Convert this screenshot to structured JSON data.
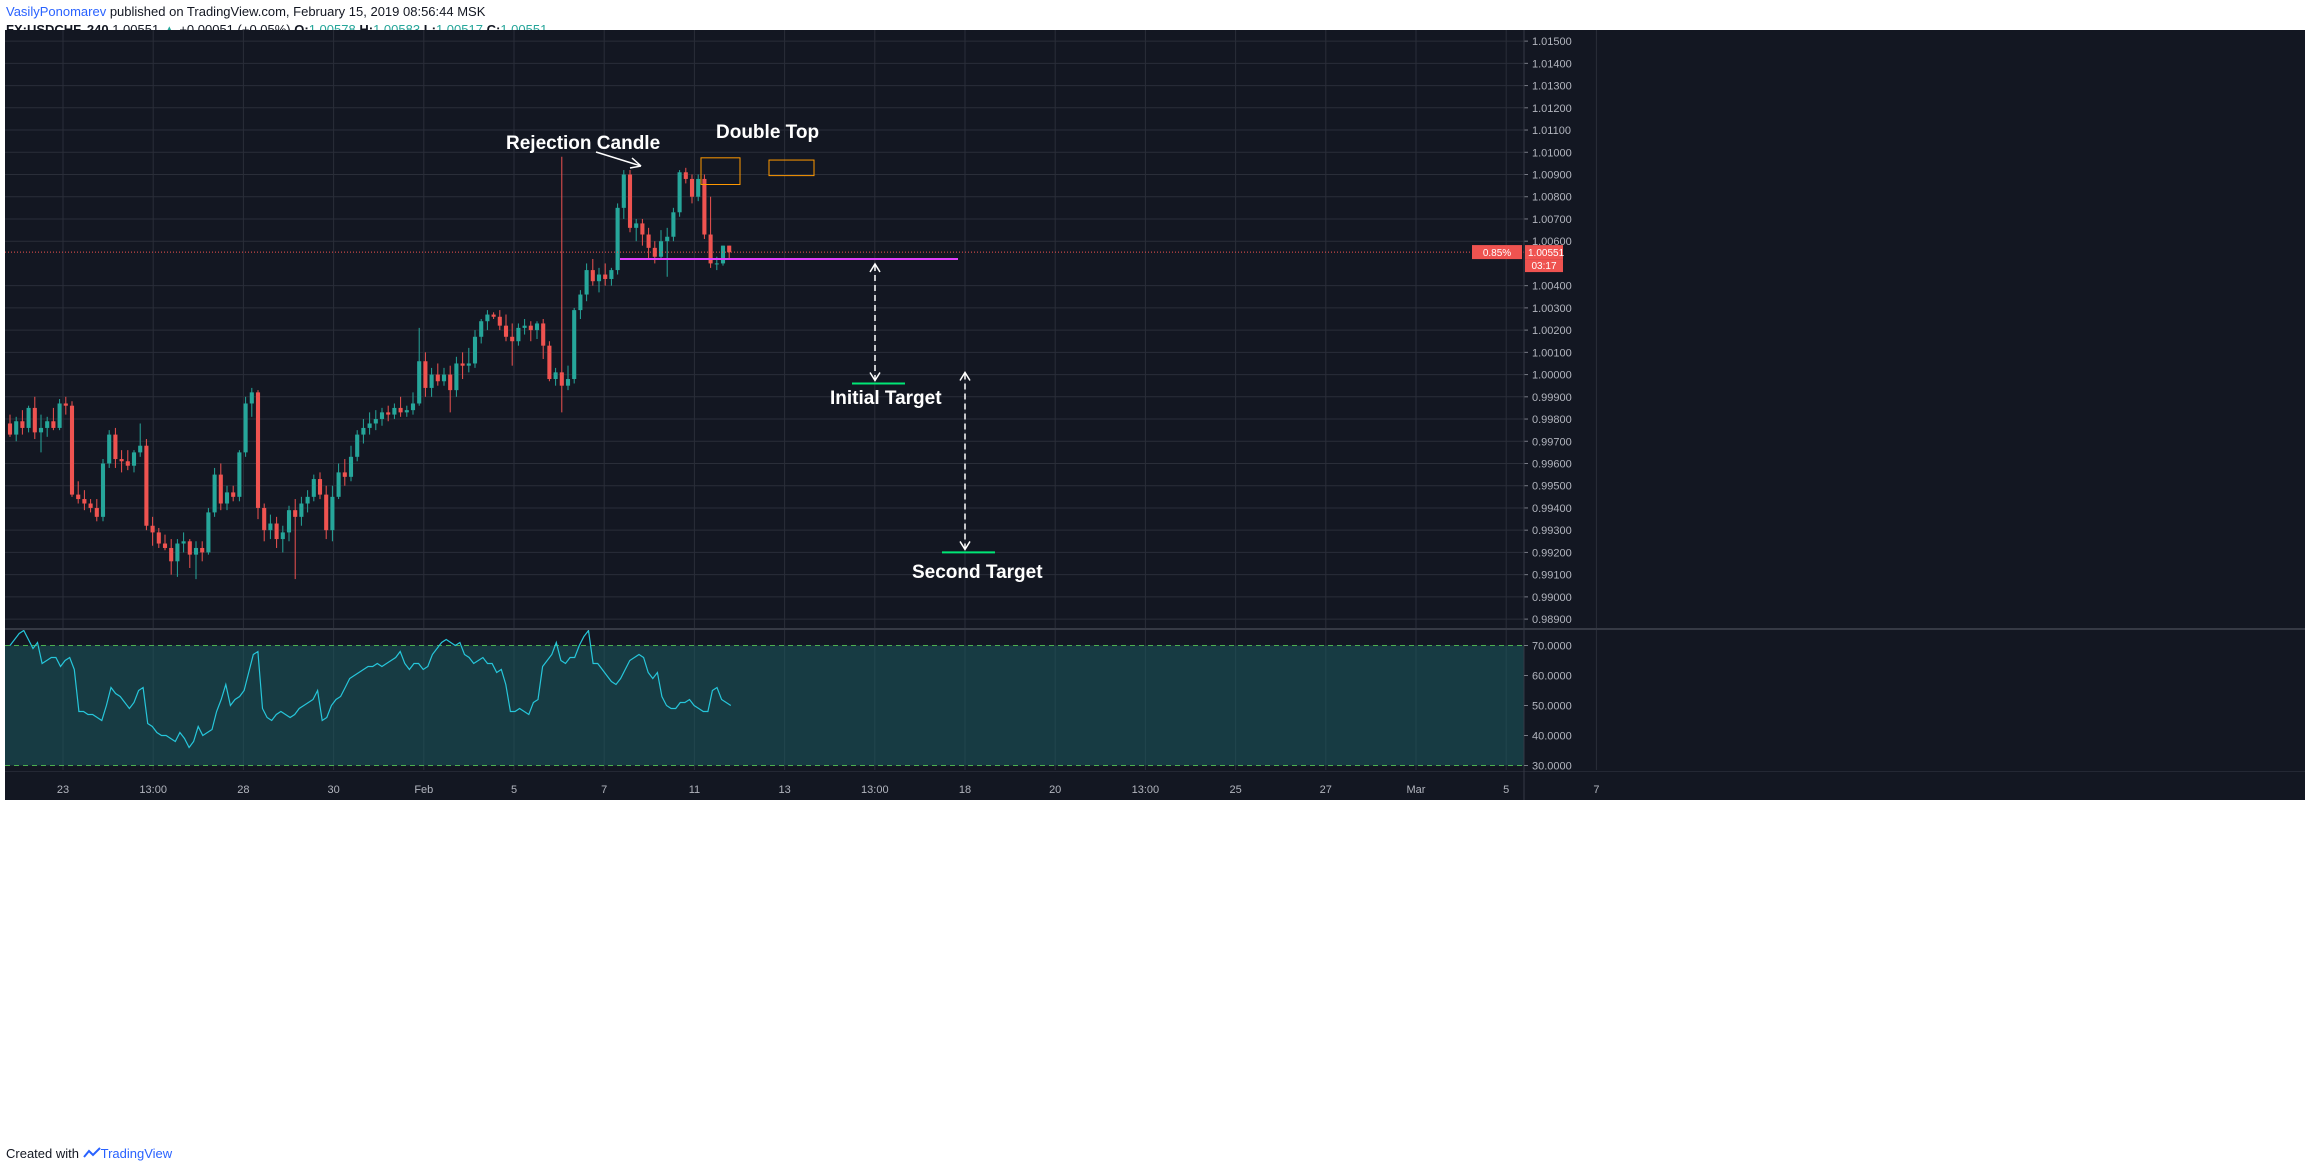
{
  "header": {
    "author": "VasilyPonomarev",
    "published_text": "published on TradingView.com, February 15, 2019 08:56:44 MSK",
    "symbol": "FX:USDCHF, 240",
    "last": "1.00551",
    "change": "+0.00051 (+0.05%)",
    "o_label": "O:",
    "o_value": "1.00578",
    "h_label": "H:",
    "h_value": "1.00583",
    "l_label": "L:",
    "l_value": "1.00517",
    "c_label": "C:",
    "c_value": "1.00551"
  },
  "footer": {
    "created_with": "Created with",
    "brand": "TradingView"
  },
  "colors": {
    "background": "#131722",
    "grid": "#2a2e39",
    "text": "#b2b5be",
    "up": "#26a69a",
    "down": "#ef5350",
    "support_line": "#e040fb",
    "double_top_box": "#ff9800",
    "target_line": "#00e676",
    "rsi_line": "#26c6da",
    "rsi_band": "#1b5a5e",
    "price_line": "#ef5350"
  },
  "chart_data": [
    {
      "type": "candlestick",
      "symbol": "FX:USDCHF",
      "timeframe": "240",
      "x_ticks": [
        "23",
        "13:00",
        "28",
        "30",
        "Feb",
        "5",
        "7",
        "11",
        "13",
        "13:00",
        "18",
        "20",
        "13:00",
        "25",
        "27",
        "Mar",
        "5",
        "7"
      ],
      "y_ticks": [
        "1.01500",
        "1.01400",
        "1.01300",
        "1.01200",
        "1.01100",
        "1.01000",
        "1.00900",
        "1.00800",
        "1.00700",
        "1.00600",
        "1.00400",
        "1.00300",
        "1.00200",
        "1.00100",
        "1.00000",
        "0.99900",
        "0.99800",
        "0.99700",
        "0.99600",
        "0.99500",
        "0.99400",
        "0.99300",
        "0.99200",
        "0.99100",
        "0.99000",
        "0.98900"
      ],
      "ylim": [
        0.9886,
        1.0155
      ],
      "grid": true,
      "ohlc": [
        [
          0.9978,
          0.9982,
          0.9972,
          0.9973
        ],
        [
          0.9973,
          0.9981,
          0.997,
          0.9979
        ],
        [
          0.9979,
          0.9984,
          0.9973,
          0.9976
        ],
        [
          0.9976,
          0.9986,
          0.9974,
          0.9985
        ],
        [
          0.9985,
          0.999,
          0.9971,
          0.9974
        ],
        [
          0.9974,
          0.9982,
          0.9965,
          0.9976
        ],
        [
          0.9976,
          0.9981,
          0.9972,
          0.9979
        ],
        [
          0.9979,
          0.9985,
          0.9975,
          0.9976
        ],
        [
          0.9976,
          0.9989,
          0.9975,
          0.9987
        ],
        [
          0.9987,
          0.999,
          0.9982,
          0.9986
        ],
        [
          0.9986,
          0.9988,
          0.9945,
          0.9946
        ],
        [
          0.9946,
          0.9952,
          0.9942,
          0.9944
        ],
        [
          0.9944,
          0.9948,
          0.9939,
          0.9942
        ],
        [
          0.9942,
          0.9944,
          0.9938,
          0.994
        ],
        [
          0.994,
          0.9944,
          0.9934,
          0.9936
        ],
        [
          0.9936,
          0.9962,
          0.9934,
          0.996
        ],
        [
          0.996,
          0.9975,
          0.9958,
          0.9973
        ],
        [
          0.9973,
          0.9976,
          0.9958,
          0.9962
        ],
        [
          0.9962,
          0.9966,
          0.9956,
          0.9961
        ],
        [
          0.9961,
          0.9966,
          0.9957,
          0.9959
        ],
        [
          0.9959,
          0.9966,
          0.9956,
          0.9965
        ],
        [
          0.9965,
          0.9978,
          0.9963,
          0.9968
        ],
        [
          0.9968,
          0.9971,
          0.993,
          0.9932
        ],
        [
          0.9932,
          0.9936,
          0.9923,
          0.9929
        ],
        [
          0.9929,
          0.9931,
          0.9922,
          0.9924
        ],
        [
          0.9924,
          0.9928,
          0.9921,
          0.9922
        ],
        [
          0.9922,
          0.9926,
          0.991,
          0.9916
        ],
        [
          0.9916,
          0.9926,
          0.9909,
          0.9924
        ],
        [
          0.9924,
          0.9929,
          0.992,
          0.9925
        ],
        [
          0.9925,
          0.9926,
          0.9913,
          0.9919
        ],
        [
          0.9919,
          0.9925,
          0.9908,
          0.9922
        ],
        [
          0.9922,
          0.9925,
          0.9916,
          0.992
        ],
        [
          0.992,
          0.994,
          0.9919,
          0.9938
        ],
        [
          0.9938,
          0.9958,
          0.9936,
          0.9955
        ],
        [
          0.9955,
          0.996,
          0.9939,
          0.9942
        ],
        [
          0.9942,
          0.995,
          0.9939,
          0.9947
        ],
        [
          0.9947,
          0.995,
          0.9943,
          0.9945
        ],
        [
          0.9945,
          0.9966,
          0.9943,
          0.9965
        ],
        [
          0.9965,
          0.999,
          0.9963,
          0.9987
        ],
        [
          0.9987,
          0.9994,
          0.9981,
          0.9992
        ],
        [
          0.9992,
          0.9993,
          0.9935,
          0.994
        ],
        [
          0.994,
          0.9942,
          0.9925,
          0.993
        ],
        [
          0.993,
          0.9937,
          0.9926,
          0.9933
        ],
        [
          0.9933,
          0.9936,
          0.9922,
          0.9926
        ],
        [
          0.9926,
          0.9932,
          0.992,
          0.9929
        ],
        [
          0.9929,
          0.9941,
          0.9925,
          0.9939
        ],
        [
          0.9939,
          0.9944,
          0.9908,
          0.9936
        ],
        [
          0.9936,
          0.9945,
          0.9932,
          0.9942
        ],
        [
          0.9942,
          0.9948,
          0.9938,
          0.9945
        ],
        [
          0.9945,
          0.9955,
          0.9943,
          0.9953
        ],
        [
          0.9953,
          0.9956,
          0.9944,
          0.9946
        ],
        [
          0.9946,
          0.995,
          0.9926,
          0.993
        ],
        [
          0.993,
          0.995,
          0.9925,
          0.9945
        ],
        [
          0.9945,
          0.996,
          0.9944,
          0.9956
        ],
        [
          0.9956,
          0.9962,
          0.995,
          0.9954
        ],
        [
          0.9954,
          0.9968,
          0.9952,
          0.9963
        ],
        [
          0.9963,
          0.9975,
          0.9961,
          0.9973
        ],
        [
          0.9973,
          0.998,
          0.9969,
          0.9976
        ],
        [
          0.9976,
          0.9983,
          0.9973,
          0.9978
        ],
        [
          0.9978,
          0.9984,
          0.9975,
          0.998
        ],
        [
          0.998,
          0.9985,
          0.9977,
          0.9983
        ],
        [
          0.9983,
          0.9986,
          0.9979,
          0.9982
        ],
        [
          0.9982,
          0.9987,
          0.998,
          0.9985
        ],
        [
          0.9985,
          0.999,
          0.9981,
          0.9983
        ],
        [
          0.9983,
          0.9986,
          0.9981,
          0.9984
        ],
        [
          0.9984,
          0.9992,
          0.9982,
          0.9987
        ],
        [
          0.9987,
          1.0021,
          0.9986,
          1.0006
        ],
        [
          1.0006,
          1.001,
          0.999,
          0.9994
        ],
        [
          0.9994,
          1.0003,
          0.999,
          1.0
        ],
        [
          1.0,
          1.0005,
          0.9995,
          0.9997
        ],
        [
          0.9997,
          1.0003,
          0.9995,
          1.0
        ],
        [
          1.0,
          1.0004,
          0.9983,
          0.9993
        ],
        [
          0.9993,
          1.0008,
          0.999,
          1.0005
        ],
        [
          1.0005,
          1.001,
          0.9998,
          1.0004
        ],
        [
          1.0004,
          1.0012,
          1.0001,
          1.0005
        ],
        [
          1.0005,
          1.002,
          1.0003,
          1.0017
        ],
        [
          1.0017,
          1.0025,
          1.0014,
          1.0024
        ],
        [
          1.0024,
          1.0029,
          1.002,
          1.0027
        ],
        [
          1.0027,
          1.0028,
          1.0025,
          1.0026
        ],
        [
          1.0026,
          1.0029,
          1.002,
          1.0022
        ],
        [
          1.0022,
          1.0027,
          1.0015,
          1.0017
        ],
        [
          1.0017,
          1.0023,
          1.0004,
          1.0015
        ],
        [
          1.0015,
          1.0023,
          1.0013,
          1.0021
        ],
        [
          1.0021,
          1.0025,
          1.0018,
          1.0022
        ],
        [
          1.0022,
          1.0024,
          1.0015,
          1.002
        ],
        [
          1.002,
          1.0024,
          1.0016,
          1.0023
        ],
        [
          1.0023,
          1.0025,
          1.0007,
          1.0013
        ],
        [
          1.0013,
          1.0015,
          0.9997,
          0.9998
        ],
        [
          0.9998,
          1.0003,
          0.9995,
          1.0001
        ],
        [
          1.0001,
          1.0098,
          0.9983,
          0.9995
        ],
        [
          0.9995,
          1.0004,
          0.9993,
          0.9998
        ],
        [
          0.9998,
          1.003,
          0.9996,
          1.0029
        ],
        [
          1.0029,
          1.0038,
          1.0025,
          1.0036
        ],
        [
          1.0036,
          1.005,
          1.0033,
          1.0047
        ],
        [
          1.0047,
          1.0052,
          1.004,
          1.0042
        ],
        [
          1.0042,
          1.0048,
          1.0037,
          1.0045
        ],
        [
          1.0045,
          1.005,
          1.004,
          1.0043
        ],
        [
          1.0043,
          1.0048,
          1.004,
          1.0047
        ],
        [
          1.0047,
          1.0077,
          1.0045,
          1.0075
        ],
        [
          1.0075,
          1.0092,
          1.007,
          1.009
        ],
        [
          1.009,
          1.0092,
          1.0064,
          1.0066
        ],
        [
          1.0066,
          1.007,
          1.006,
          1.0068
        ],
        [
          1.0068,
          1.007,
          1.0058,
          1.0063
        ],
        [
          1.0063,
          1.0066,
          1.0052,
          1.0057
        ],
        [
          1.0057,
          1.006,
          1.005,
          1.0053
        ],
        [
          1.0053,
          1.0065,
          1.0052,
          1.006
        ],
        [
          1.006,
          1.0066,
          1.0044,
          1.0062
        ],
        [
          1.0062,
          1.0075,
          1.006,
          1.0073
        ],
        [
          1.0073,
          1.0092,
          1.0071,
          1.0091
        ],
        [
          1.0091,
          1.0093,
          1.0086,
          1.0088
        ],
        [
          1.0088,
          1.009,
          1.0077,
          1.008
        ],
        [
          1.008,
          1.009,
          1.0078,
          1.0088
        ],
        [
          1.0088,
          1.009,
          1.0061,
          1.0063
        ],
        [
          1.0063,
          1.008,
          1.0048,
          1.005
        ],
        [
          1.005,
          1.0053,
          1.0047,
          1.005
        ],
        [
          1.005,
          1.0058,
          1.0049,
          1.0058
        ],
        [
          1.0058,
          1.0058,
          1.0052,
          1.0055
        ]
      ],
      "current_price": 1.00551,
      "price_label": "1.00551",
      "change_label": "0.85%",
      "countdown_label": "03:17",
      "support_level": 1.0052,
      "annotations": {
        "rejection": "Rejection Candle",
        "double_top": "Double Top",
        "initial_target": "Initial Target",
        "second_target": "Second Target"
      },
      "initial_target_level": 0.9996,
      "second_target_level": 0.992
    },
    {
      "type": "line",
      "indicator": "RSI",
      "y_ticks": [
        "70.0000",
        "60.0000",
        "50.0000",
        "40.0000",
        "30.0000"
      ],
      "ylim": [
        28.5,
        74.5
      ],
      "band": [
        30,
        70
      ],
      "values": [
        70,
        72,
        74,
        75,
        72,
        69,
        71,
        64,
        65,
        66,
        66,
        63,
        65,
        66,
        62,
        48,
        48,
        47,
        47,
        46,
        45,
        50,
        56,
        54,
        53,
        51,
        49,
        51,
        55,
        56,
        44,
        43,
        41,
        40,
        40,
        39,
        38,
        41,
        39,
        36,
        38,
        43,
        40,
        41,
        42,
        48,
        52,
        57,
        50,
        52,
        53,
        55,
        61,
        67,
        68,
        49,
        46,
        45,
        47,
        48,
        47,
        46,
        47,
        49,
        50,
        51,
        52,
        55,
        45,
        46,
        50,
        52,
        53,
        56,
        59,
        60,
        61,
        62,
        63,
        63,
        64,
        63,
        64,
        65,
        66,
        68,
        64,
        62,
        64,
        64,
        62,
        63,
        67,
        69,
        71,
        72,
        71,
        70,
        71,
        67,
        66,
        64,
        65,
        66,
        64,
        64,
        61,
        62,
        57,
        48,
        48,
        49,
        48,
        47,
        51,
        52,
        63,
        65,
        67,
        71,
        65,
        64,
        66,
        66,
        70,
        73,
        75,
        64,
        64,
        62,
        60,
        58,
        57,
        59,
        62,
        65,
        66,
        67,
        66,
        61,
        59,
        61,
        53,
        50,
        49,
        49,
        51,
        51,
        52,
        50,
        49,
        48,
        48,
        55,
        56,
        52,
        51,
        50
      ]
    }
  ]
}
